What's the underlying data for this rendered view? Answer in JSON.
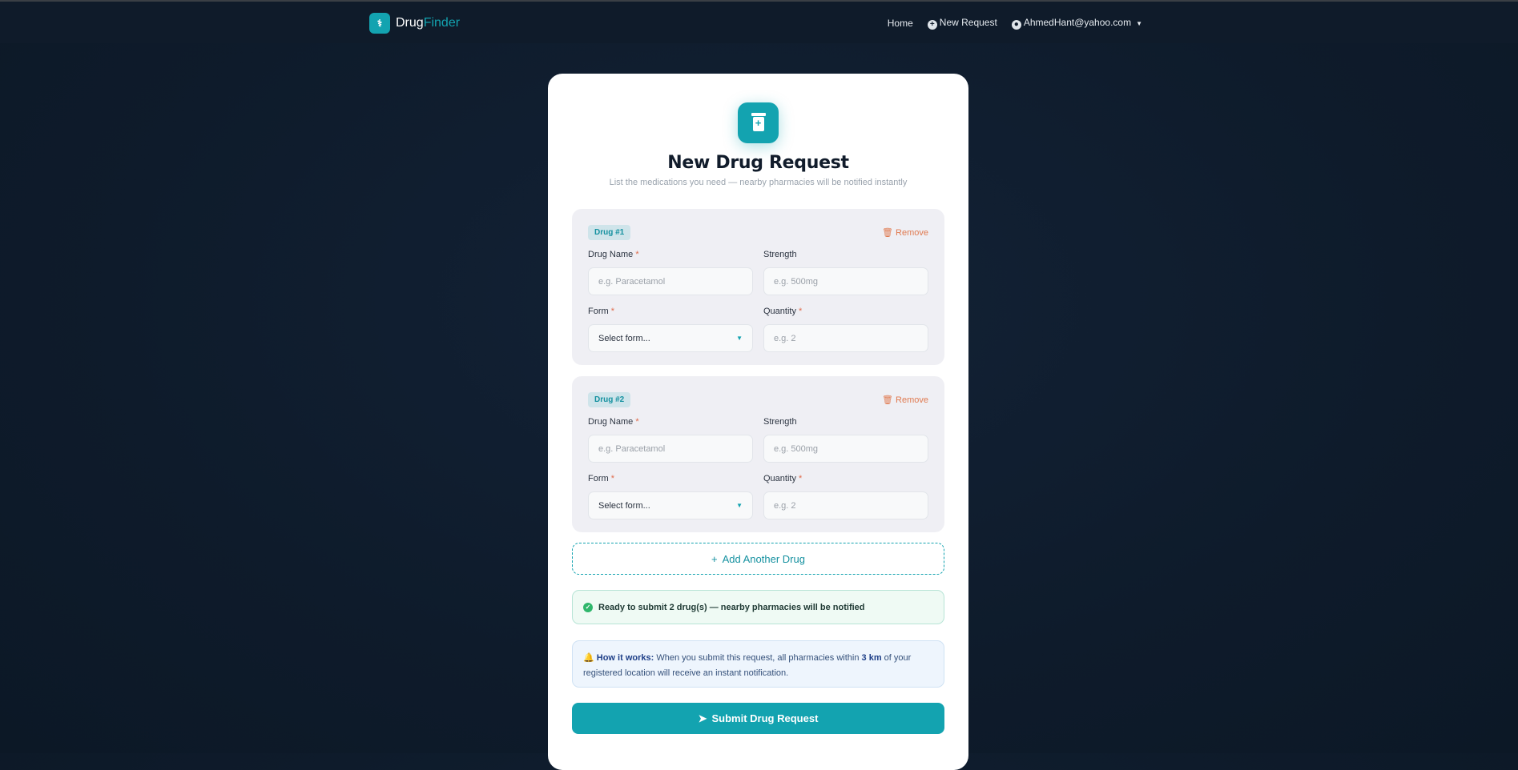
{
  "nav": {
    "brand_prefix": "Drug",
    "brand_suffix": "Finder",
    "home": "Home",
    "new_request": "New Request",
    "user": "AhmedHant@yahoo.com"
  },
  "form": {
    "title": "New Drug Request",
    "subtitle": "List the medications you need — nearby pharmacies will be notified instantly",
    "drugs": [
      {
        "badge": "Drug #1",
        "remove": "Remove",
        "name_label": "Drug Name",
        "name_placeholder": "e.g. Paracetamol",
        "strength_label": "Strength",
        "strength_placeholder": "e.g. 500mg",
        "form_label": "Form",
        "form_value": "Select form...",
        "quantity_label": "Quantity",
        "quantity_placeholder": "e.g. 2"
      },
      {
        "badge": "Drug #2",
        "remove": "Remove",
        "name_label": "Drug Name",
        "name_placeholder": "e.g. Paracetamol",
        "strength_label": "Strength",
        "strength_placeholder": "e.g. 500mg",
        "form_label": "Form",
        "form_value": "Select form...",
        "quantity_label": "Quantity",
        "quantity_placeholder": "e.g. 2"
      }
    ],
    "required_mark": "*",
    "add_label": "Add Another Drug",
    "ready_text": "Ready to submit 2 drug(s) — nearby pharmacies will be notified",
    "how_title": "How it works:",
    "how_text_1": "When you submit this request, all pharmacies within",
    "how_distance": "3 km",
    "how_text_2": "of your registered location will receive an instant notification.",
    "submit_label": "Submit Drug Request"
  },
  "colors": {
    "accent": "#13a3b0",
    "danger": "#e07a50",
    "success": "#2fb66b",
    "background": "#0f1b2a"
  }
}
